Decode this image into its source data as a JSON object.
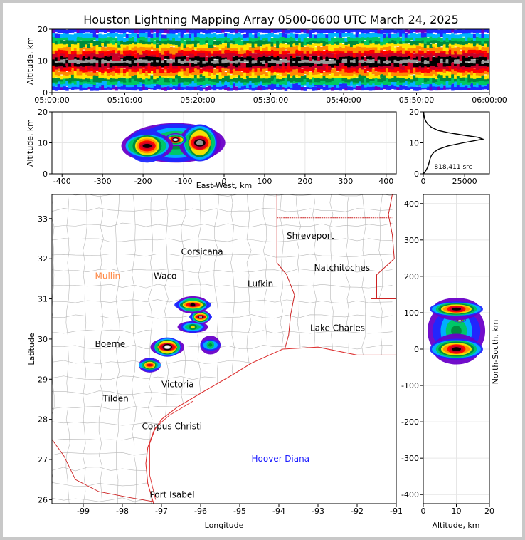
{
  "title": "Houston Lightning Mapping Array 0500-0600 UTC March 24, 2025",
  "colors": {
    "state_border": "#cc2222",
    "county_border": "#b8b8b8",
    "coast": "#dd3333",
    "density_ramp": [
      "#6a00c8",
      "#1e28ff",
      "#00b4ff",
      "#00c860",
      "#008a3c",
      "#ffe600",
      "#ff8c00",
      "#ff0000",
      "#c80028",
      "#000000",
      "#9a9a9a",
      "#ffffff"
    ]
  },
  "chart_data": [
    {
      "type": "heatmap",
      "name": "time-altitude",
      "xlabel": "",
      "ylabel": "Altitude, km",
      "xticks": [
        "05:00:00",
        "05:10:00",
        "05:20:00",
        "05:30:00",
        "05:40:00",
        "05:50:00",
        "06:00:00"
      ],
      "xlim_minutes": [
        0,
        60
      ],
      "yticks": [
        "0",
        "10",
        "20"
      ],
      "ylim": [
        0,
        20
      ],
      "bands": [
        {
          "alt": 1.5,
          "level": 1
        },
        {
          "alt": 2.5,
          "level": 2
        },
        {
          "alt": 3.3,
          "level": 3
        },
        {
          "alt": 4.2,
          "level": 4
        },
        {
          "alt": 5.2,
          "level": 5
        },
        {
          "alt": 6.2,
          "level": 6
        },
        {
          "alt": 7.2,
          "level": 7
        },
        {
          "alt": 8.2,
          "level": 8
        },
        {
          "alt": 9.0,
          "level": 9
        },
        {
          "alt": 10.0,
          "level": 10
        },
        {
          "alt": 11.0,
          "level": 9
        },
        {
          "alt": 12.0,
          "level": 8
        },
        {
          "alt": 13.0,
          "level": 7
        },
        {
          "alt": 14.0,
          "level": 6
        },
        {
          "alt": 15.0,
          "level": 5
        },
        {
          "alt": 16.0,
          "level": 4
        },
        {
          "alt": 17.0,
          "level": 3
        },
        {
          "alt": 18.0,
          "level": 2
        },
        {
          "alt": 19.5,
          "level": 1
        }
      ]
    },
    {
      "type": "heatmap",
      "name": "east-west-altitude",
      "xlabel": "East-West, km",
      "ylabel": "Altitude, km",
      "xticks": [
        "-400",
        "-300",
        "-200",
        "-100",
        "0",
        "100",
        "200",
        "300",
        "400"
      ],
      "xlim": [
        -425,
        425
      ],
      "yticks": [
        "0",
        "10",
        "20"
      ],
      "ylim": [
        0,
        20
      ],
      "blobs": [
        {
          "x": -190,
          "alt": 9,
          "rx": 65,
          "ralt": 8,
          "peak": 9
        },
        {
          "x": -120,
          "alt": 11,
          "rx": 30,
          "ralt": 3,
          "peak": 11
        },
        {
          "x": -60,
          "alt": 10,
          "rx": 55,
          "ralt": 9,
          "peak": 10
        },
        {
          "x": -40,
          "alt": 10,
          "rx": 25,
          "ralt": 3,
          "peak": 11
        },
        {
          "x": -120,
          "alt": 10,
          "rx": 140,
          "ralt": 11,
          "peak": 5
        }
      ]
    },
    {
      "type": "line",
      "name": "altitude-histogram",
      "xticks": [
        "0",
        "25000"
      ],
      "xlim": [
        0,
        40000
      ],
      "yticks": [
        "0",
        "10",
        "20"
      ],
      "ylim": [
        0,
        20
      ],
      "annotation": "818,411 src",
      "points": [
        [
          0,
          0.0
        ],
        [
          1500,
          1.0
        ],
        [
          2500,
          2.0
        ],
        [
          3200,
          3.0
        ],
        [
          3700,
          4.0
        ],
        [
          4200,
          5.0
        ],
        [
          5000,
          6.0
        ],
        [
          6500,
          7.0
        ],
        [
          9500,
          8.0
        ],
        [
          15000,
          9.0
        ],
        [
          24000,
          10.0
        ],
        [
          32000,
          10.8
        ],
        [
          36000,
          11.2
        ],
        [
          33000,
          11.8
        ],
        [
          24000,
          12.5
        ],
        [
          15000,
          13.3
        ],
        [
          9000,
          14.0
        ],
        [
          5000,
          15.0
        ],
        [
          2800,
          16.0
        ],
        [
          1500,
          17.0
        ],
        [
          700,
          18.0
        ],
        [
          400,
          19.0
        ],
        [
          200,
          20.0
        ]
      ]
    },
    {
      "type": "heatmap",
      "name": "plan-view-map",
      "xlabel": "Longitude",
      "ylabel": "Latitude",
      "xticks": [
        "-99",
        "-98",
        "-97",
        "-96",
        "-95",
        "-94",
        "-93",
        "-92",
        "-91"
      ],
      "xlim": [
        -99.8,
        -91.0
      ],
      "yticks": [
        "26",
        "27",
        "28",
        "29",
        "30",
        "31",
        "32",
        "33"
      ],
      "ylim": [
        25.9,
        33.6
      ],
      "blobs": [
        {
          "lon": -96.85,
          "lat": 29.8,
          "rlon": 0.45,
          "rlat": 0.35,
          "peak": 11
        },
        {
          "lon": -97.3,
          "lat": 29.35,
          "rlon": 0.35,
          "rlat": 0.25,
          "peak": 8
        },
        {
          "lon": -96.2,
          "lat": 30.85,
          "rlon": 0.5,
          "rlat": 0.3,
          "peak": 9
        },
        {
          "lon": -96.0,
          "lat": 30.55,
          "rlon": 0.3,
          "rlat": 0.25,
          "peak": 10
        },
        {
          "lon": -96.2,
          "lat": 30.3,
          "rlon": 0.4,
          "rlat": 0.3,
          "peak": 5
        },
        {
          "lon": -95.75,
          "lat": 29.85,
          "rlon": 0.35,
          "rlat": 0.35,
          "peak": 4
        }
      ],
      "cities": [
        {
          "name": "Shreveport",
          "lon": -93.8,
          "lat": 32.5,
          "color": "#000000"
        },
        {
          "name": "Corsicana",
          "lon": -96.5,
          "lat": 32.1,
          "color": "#000000"
        },
        {
          "name": "Natchitoches",
          "lon": -93.1,
          "lat": 31.7,
          "color": "#000000"
        },
        {
          "name": "Mullin",
          "lon": -98.7,
          "lat": 31.5,
          "color": "#ff8844"
        },
        {
          "name": "Waco",
          "lon": -97.2,
          "lat": 31.5,
          "color": "#000000"
        },
        {
          "name": "Lufkin",
          "lon": -94.8,
          "lat": 31.3,
          "color": "#000000"
        },
        {
          "name": "Lake Charles",
          "lon": -93.2,
          "lat": 30.2,
          "color": "#000000"
        },
        {
          "name": "Boerne",
          "lon": -98.7,
          "lat": 29.8,
          "color": "#000000"
        },
        {
          "name": "Victoria",
          "lon": -97.0,
          "lat": 28.8,
          "color": "#000000"
        },
        {
          "name": "Tilden",
          "lon": -98.5,
          "lat": 28.45,
          "color": "#000000"
        },
        {
          "name": "Corpus Christi",
          "lon": -97.5,
          "lat": 27.75,
          "color": "#000000"
        },
        {
          "name": "Hoover-Diana",
          "lon": -94.7,
          "lat": 26.95,
          "color": "#1a1aff"
        },
        {
          "name": "Port Isabel",
          "lon": -97.3,
          "lat": 26.05,
          "color": "#000000"
        }
      ]
    },
    {
      "type": "heatmap",
      "name": "altitude-north-south",
      "xlabel": "Altitude, km",
      "ylabel": "North-South, km",
      "xticks": [
        "0",
        "10",
        "20"
      ],
      "xlim": [
        0,
        20
      ],
      "yticks": [
        "400",
        "300",
        "200",
        "100",
        "0",
        "-100",
        "-200",
        "-300",
        "-400"
      ],
      "ylim": [
        -425,
        425
      ],
      "blobs": [
        {
          "alt": 10,
          "ns": 110,
          "ralt": 9,
          "rns": 40,
          "peak": 9
        },
        {
          "alt": 11,
          "ns": 120,
          "ralt": 2,
          "rns": 15,
          "peak": 11
        },
        {
          "alt": 11,
          "ns": 80,
          "ralt": 2,
          "rns": 10,
          "peak": 11
        },
        {
          "alt": 10,
          "ns": 0,
          "ralt": 9,
          "rns": 55,
          "peak": 9
        },
        {
          "alt": 11,
          "ns": 5,
          "ralt": 2,
          "rns": 18,
          "peak": 11
        },
        {
          "alt": 10,
          "ns": 50,
          "ralt": 10,
          "rns": 150,
          "peak": 4
        }
      ]
    }
  ]
}
